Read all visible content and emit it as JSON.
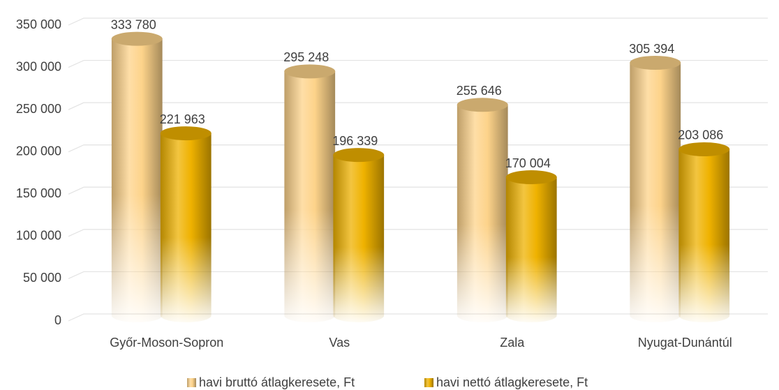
{
  "chart_data": {
    "type": "bar",
    "categories": [
      "Győr-Moson-Sopron",
      "Vas",
      "Zala",
      "Nyugat-Dunántúl"
    ],
    "series": [
      {
        "name": "havi bruttó átlagkeresete, Ft",
        "color": "#fdd38a",
        "values": [
          333780,
          295248,
          255646,
          305394
        ],
        "value_labels": [
          "333 780",
          "295 248",
          "255 646",
          "305 394"
        ]
      },
      {
        "name": "havi nettó átlagkeresete, Ft",
        "color": "#efb200",
        "values": [
          221963,
          196339,
          170004,
          203086
        ],
        "value_labels": [
          "221 963",
          "196 339",
          "170 004",
          "203 086"
        ]
      }
    ],
    "ylim": [
      0,
      350000
    ],
    "yticks": [
      0,
      {
        "value": 50000,
        "label": "50 000"
      },
      {
        "value": 100000,
        "label": "100 000"
      },
      {
        "value": 150000,
        "label": "150 000"
      },
      {
        "value": 200000,
        "label": "200 000"
      },
      {
        "value": 250000,
        "label": "250 000"
      },
      {
        "value": 300000,
        "label": "300 000"
      },
      {
        "value": 350000,
        "label": "350 000"
      }
    ],
    "grid": true,
    "legend": "bottom"
  }
}
